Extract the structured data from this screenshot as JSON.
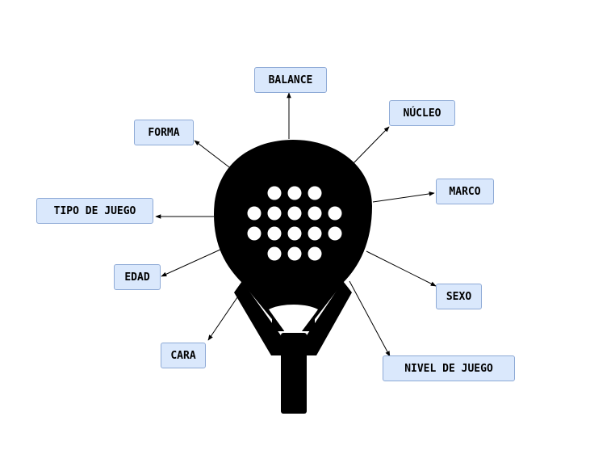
{
  "diagram": {
    "subject": "padel-racket",
    "labels": {
      "balance": "BALANCE",
      "nucleo": "NÚCLEO",
      "forma": "FORMA",
      "marco": "MARCO",
      "tipo_de_juego": "TIPO DE JUEGO",
      "edad": "EDAD",
      "sexo": "SEXO",
      "cara": "CARA",
      "nivel_de_juego": "NIVEL DE JUEGO"
    },
    "colors": {
      "box_fill": "#dae8fc",
      "box_border": "#8eaad6",
      "racket": "#000000",
      "holes": "#ffffff",
      "arrows": "#000000"
    }
  }
}
